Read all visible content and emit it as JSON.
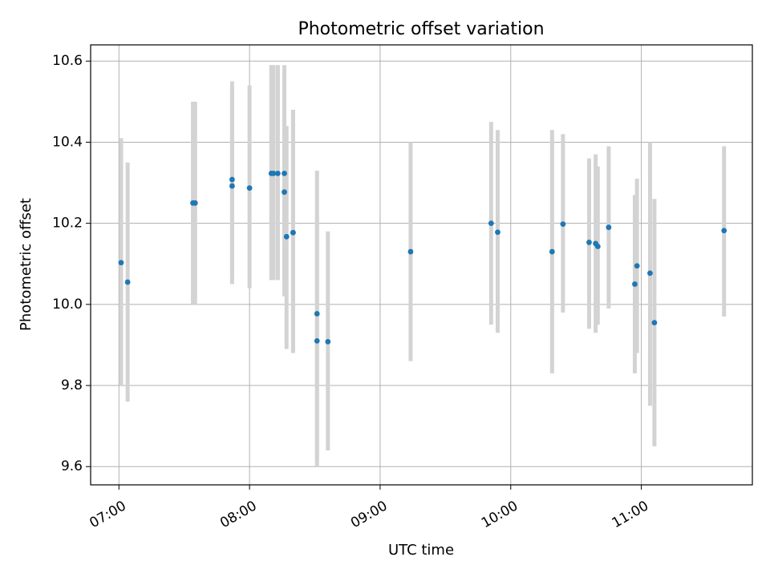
{
  "chart_data": {
    "type": "scatter",
    "title": "Photometric offset variation",
    "xlabel": "UTC time",
    "ylabel": "Photometric offset",
    "x_axis_type": "time",
    "xlim": [
      "06:47",
      "11:51"
    ],
    "ylim": [
      9.555,
      10.64
    ],
    "x_ticks": [
      "07:00",
      "08:00",
      "09:00",
      "10:00",
      "11:00"
    ],
    "y_ticks": [
      9.6,
      9.8,
      10.0,
      10.2,
      10.4,
      10.6
    ],
    "y_tick_labels": [
      "9.6",
      "9.8",
      "10.0",
      "10.2",
      "10.4",
      "10.6"
    ],
    "grid": true,
    "legend": "none",
    "colors": {
      "point": "#1f77b4",
      "errorbar": "#d3d3d3",
      "grid": "#b0b0b0"
    },
    "points": [
      {
        "x": "07:01",
        "y": 10.103,
        "err_low": 9.8,
        "err_high": 10.41
      },
      {
        "x": "07:04",
        "y": 10.055,
        "err_low": 9.76,
        "err_high": 10.35
      },
      {
        "x": "07:34",
        "y": 10.25,
        "err_low": 10.0,
        "err_high": 10.5
      },
      {
        "x": "07:35",
        "y": 10.25,
        "err_low": 10.0,
        "err_high": 10.5
      },
      {
        "x": "07:52",
        "y": 10.292,
        "err_low": 10.05,
        "err_high": 10.53
      },
      {
        "x": "07:52",
        "y": 10.308,
        "err_low": 10.07,
        "err_high": 10.55
      },
      {
        "x": "08:00",
        "y": 10.287,
        "err_low": 10.04,
        "err_high": 10.54
      },
      {
        "x": "08:10",
        "y": 10.323,
        "err_low": 10.06,
        "err_high": 10.59
      },
      {
        "x": "08:11",
        "y": 10.323,
        "err_low": 10.06,
        "err_high": 10.59
      },
      {
        "x": "08:13",
        "y": 10.323,
        "err_low": 10.06,
        "err_high": 10.59
      },
      {
        "x": "08:16",
        "y": 10.323,
        "err_low": 10.06,
        "err_high": 10.59
      },
      {
        "x": "08:16",
        "y": 10.277,
        "err_low": 10.02,
        "err_high": 10.54
      },
      {
        "x": "08:17",
        "y": 10.167,
        "err_low": 9.89,
        "err_high": 10.44
      },
      {
        "x": "08:20",
        "y": 10.177,
        "err_low": 9.88,
        "err_high": 10.48
      },
      {
        "x": "08:20",
        "y": 10.177,
        "err_low": 9.88,
        "err_high": 10.48
      },
      {
        "x": "08:31",
        "y": 9.977,
        "err_low": 9.62,
        "err_high": 10.33
      },
      {
        "x": "08:31",
        "y": 9.91,
        "err_low": 9.6,
        "err_high": 10.22
      },
      {
        "x": "08:36",
        "y": 9.908,
        "err_low": 9.64,
        "err_high": 10.18
      },
      {
        "x": "09:14",
        "y": 10.13,
        "err_low": 9.86,
        "err_high": 10.4
      },
      {
        "x": "09:51",
        "y": 10.2,
        "err_low": 9.95,
        "err_high": 10.45
      },
      {
        "x": "09:54",
        "y": 10.178,
        "err_low": 9.93,
        "err_high": 10.43
      },
      {
        "x": "10:19",
        "y": 10.13,
        "err_low": 9.83,
        "err_high": 10.43
      },
      {
        "x": "10:24",
        "y": 10.198,
        "err_low": 9.98,
        "err_high": 10.42
      },
      {
        "x": "10:36",
        "y": 10.153,
        "err_low": 9.94,
        "err_high": 10.36
      },
      {
        "x": "10:39",
        "y": 10.15,
        "err_low": 9.93,
        "err_high": 10.37
      },
      {
        "x": "10:40",
        "y": 10.143,
        "err_low": 9.95,
        "err_high": 10.34
      },
      {
        "x": "10:45",
        "y": 10.19,
        "err_low": 9.99,
        "err_high": 10.39
      },
      {
        "x": "10:57",
        "y": 10.05,
        "err_low": 9.83,
        "err_high": 10.27
      },
      {
        "x": "10:58",
        "y": 10.095,
        "err_low": 9.88,
        "err_high": 10.31
      },
      {
        "x": "11:04",
        "y": 10.077,
        "err_low": 9.75,
        "err_high": 10.4
      },
      {
        "x": "11:06",
        "y": 9.955,
        "err_low": 9.65,
        "err_high": 10.26
      },
      {
        "x": "11:38",
        "y": 10.182,
        "err_low": 9.97,
        "err_high": 10.39
      }
    ]
  }
}
